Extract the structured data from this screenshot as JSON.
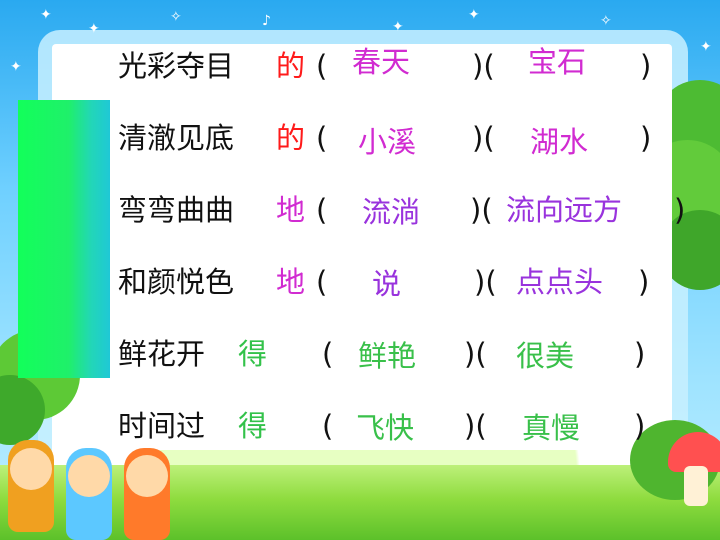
{
  "rows": [
    {
      "phrase": "光彩夺目",
      "particle": "的",
      "open1": "(",
      "answer1": "春天",
      "close_open": ")(",
      "answer2": "宝石",
      "close2": ")"
    },
    {
      "phrase": "清澈见底",
      "particle": "的",
      "open1": "(",
      "answer1": "小溪",
      "close_open": ")(",
      "answer2": "湖水",
      "close2": ")"
    },
    {
      "phrase": "弯弯曲曲",
      "particle": "地",
      "open1": "(",
      "answer1": "流淌",
      "close_open": ")(",
      "answer2": "流向远方",
      "close2": ")"
    },
    {
      "phrase": "和颜悦色",
      "particle": "地",
      "open1": "(",
      "answer1": "说",
      "close_open": ")(",
      "answer2": "点点头",
      "close2": ")"
    },
    {
      "phrase": "鲜花开",
      "particle": "得",
      "open1": "(",
      "answer1": "鲜艳",
      "close_open": ")(",
      "answer2": "很美",
      "close2": ")"
    },
    {
      "phrase": "时间过",
      "particle": "得",
      "open1": "(",
      "answer1": "飞快",
      "close_open": ")(",
      "answer2": "真慢",
      "close2": ")"
    }
  ],
  "colors": {
    "phrase": "#111111",
    "particle_de": "#ff1a1a",
    "particle_di": "#d12bd1",
    "particle_de2": "#33c24a",
    "answer_de": "#d12bd1",
    "answer_di": "#9933dd",
    "answer_de2": "#39c04a",
    "side_bar": "#12ff5a"
  }
}
